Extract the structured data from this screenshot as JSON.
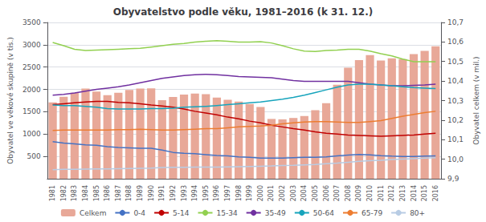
{
  "chart_data": {
    "type": "bar",
    "title": "Obyvatelstvo podle věku, 1981–2016 (k 31. 12.)",
    "ylabel": "Obyvatel ve věkové skupině (v tis.)",
    "y2label": "Obyvatel celkem (v mil.)",
    "categories": [
      1981,
      1982,
      1983,
      1984,
      1985,
      1986,
      1987,
      1988,
      1989,
      1990,
      1991,
      1992,
      1993,
      1994,
      1995,
      1996,
      1997,
      1998,
      1999,
      2000,
      2001,
      2002,
      2003,
      2004,
      2005,
      2006,
      2007,
      2008,
      2009,
      2010,
      2011,
      2012,
      2013,
      2014,
      2015,
      2016
    ],
    "series": [
      {
        "name": "Celkem",
        "type": "bar",
        "axis": "y2",
        "color": "#e8a898",
        "values": [
          10.291,
          10.32,
          10.34,
          10.362,
          10.346,
          10.328,
          10.34,
          10.354,
          10.362,
          10.363,
          10.302,
          10.318,
          10.331,
          10.336,
          10.333,
          10.315,
          10.304,
          10.295,
          10.283,
          10.267,
          10.206,
          10.204,
          10.211,
          10.221,
          10.251,
          10.287,
          10.381,
          10.468,
          10.507,
          10.533,
          10.505,
          10.516,
          10.512,
          10.538,
          10.554,
          10.578
        ]
      },
      {
        "name": "0-4",
        "type": "line",
        "color": "#4472c4",
        "values": [
          830,
          800,
          780,
          760,
          750,
          720,
          700,
          690,
          680,
          680,
          640,
          590,
          570,
          560,
          540,
          520,
          510,
          490,
          480,
          460,
          460,
          460,
          470,
          480,
          480,
          490,
          510,
          530,
          545,
          535,
          515,
          505,
          500,
          500,
          505,
          510
        ]
      },
      {
        "name": "5-14",
        "type": "line",
        "color": "#c00000",
        "values": [
          1660,
          1680,
          1700,
          1720,
          1730,
          1730,
          1710,
          1700,
          1680,
          1650,
          1630,
          1600,
          1560,
          1510,
          1470,
          1430,
          1380,
          1340,
          1290,
          1250,
          1200,
          1160,
          1120,
          1090,
          1050,
          1020,
          1000,
          980,
          970,
          960,
          950,
          960,
          970,
          980,
          1000,
          1020
        ]
      },
      {
        "name": "15-34",
        "type": "line",
        "color": "#92d050",
        "values": [
          3050,
          2980,
          2900,
          2870,
          2880,
          2890,
          2900,
          2910,
          2920,
          2950,
          2980,
          3010,
          3030,
          3060,
          3080,
          3090,
          3080,
          3060,
          3060,
          3070,
          3040,
          2980,
          2910,
          2860,
          2850,
          2870,
          2880,
          2900,
          2900,
          2860,
          2800,
          2750,
          2680,
          2620,
          2620,
          2620
        ]
      },
      {
        "name": "35-49",
        "type": "line",
        "color": "#7030a0",
        "values": [
          1870,
          1890,
          1920,
          1960,
          2000,
          2030,
          2060,
          2100,
          2150,
          2200,
          2250,
          2280,
          2310,
          2330,
          2340,
          2330,
          2310,
          2290,
          2280,
          2270,
          2260,
          2230,
          2200,
          2180,
          2180,
          2180,
          2180,
          2180,
          2150,
          2120,
          2100,
          2080,
          2080,
          2090,
          2100,
          2120
        ]
      },
      {
        "name": "50-64",
        "type": "line",
        "color": "#17a4bc",
        "values": [
          1650,
          1640,
          1640,
          1620,
          1600,
          1570,
          1560,
          1560,
          1560,
          1570,
          1570,
          1580,
          1600,
          1610,
          1620,
          1640,
          1660,
          1680,
          1700,
          1720,
          1750,
          1780,
          1820,
          1870,
          1930,
          1990,
          2050,
          2100,
          2120,
          2120,
          2100,
          2080,
          2060,
          2040,
          2030,
          2020
        ]
      },
      {
        "name": "65-79",
        "type": "line",
        "color": "#ed7d31",
        "values": [
          1080,
          1090,
          1090,
          1090,
          1090,
          1090,
          1100,
          1100,
          1110,
          1100,
          1090,
          1090,
          1100,
          1110,
          1120,
          1120,
          1140,
          1160,
          1170,
          1180,
          1200,
          1230,
          1250,
          1270,
          1280,
          1280,
          1270,
          1260,
          1260,
          1280,
          1300,
          1350,
          1400,
          1440,
          1480,
          1510
        ]
      },
      {
        "name": "80+",
        "type": "line",
        "color": "#b8cce4",
        "values": [
          200,
          210,
          210,
          215,
          220,
          220,
          225,
          230,
          235,
          240,
          250,
          255,
          255,
          260,
          260,
          260,
          265,
          270,
          275,
          280,
          285,
          295,
          300,
          310,
          320,
          335,
          350,
          370,
          390,
          405,
          415,
          430,
          440,
          450,
          460,
          470
        ]
      }
    ],
    "ylim": [
      0,
      3500
    ],
    "yticks": [
      500,
      1000,
      1500,
      2000,
      2500,
      3000,
      3500
    ],
    "y2lim": [
      9.9,
      10.7
    ],
    "y2ticks": [
      {
        "value": 9.9,
        "label": "9,9"
      },
      {
        "value": 10.0,
        "label": "10,0"
      },
      {
        "value": 10.1,
        "label": "10,1"
      },
      {
        "value": 10.2,
        "label": "10,2"
      },
      {
        "value": 10.3,
        "label": "10,3"
      },
      {
        "value": 10.4,
        "label": "10,4"
      },
      {
        "value": 10.5,
        "label": "10,5"
      },
      {
        "value": 10.6,
        "label": "10,6"
      },
      {
        "value": 10.7,
        "label": "10,7"
      }
    ],
    "grid": true,
    "legend": "bottom"
  }
}
